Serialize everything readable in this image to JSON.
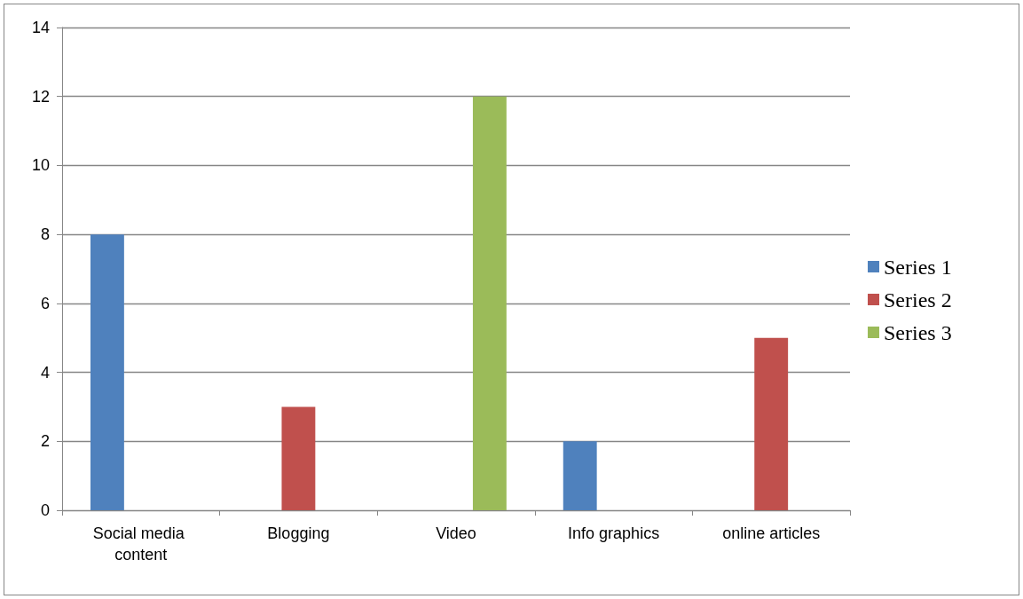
{
  "chart_data": {
    "type": "bar",
    "categories": [
      "Social media content",
      "Blogging",
      "Video",
      "Info graphics",
      "online articles"
    ],
    "series": [
      {
        "name": "Series 1",
        "color": "#4f81bd",
        "values": [
          8,
          null,
          null,
          2,
          null
        ]
      },
      {
        "name": "Series 2",
        "color": "#c0504d",
        "values": [
          null,
          3,
          null,
          null,
          5
        ]
      },
      {
        "name": "Series 3",
        "color": "#9bbb59",
        "values": [
          null,
          null,
          12,
          null,
          null
        ]
      }
    ],
    "ylim": [
      0,
      14
    ],
    "yticks": [
      0,
      2,
      4,
      6,
      8,
      10,
      12,
      14
    ],
    "grid": "y",
    "legend": "right"
  }
}
